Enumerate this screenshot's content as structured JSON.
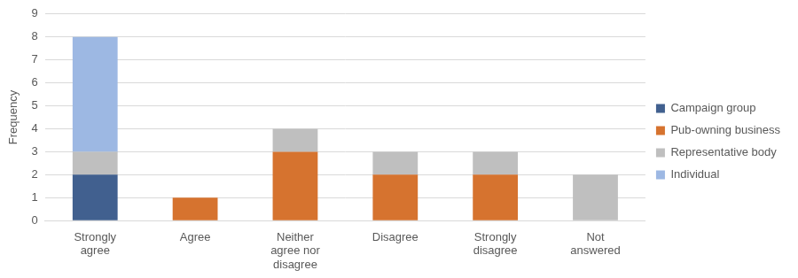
{
  "chart_data": {
    "type": "bar",
    "stacked": true,
    "grid": true,
    "legend": "right",
    "y_label": "Frequency",
    "categories": [
      "Strongly agree",
      "Agree",
      "Neither agree nor disagree",
      "Disagree",
      "Strongly disagree",
      "Not answered"
    ],
    "ylim": [
      0,
      9
    ],
    "yticks": [
      0,
      1,
      2,
      3,
      4,
      5,
      6,
      7,
      8,
      9
    ],
    "series": [
      {
        "name": "Campaign group",
        "color": "#41608f",
        "values": [
          2,
          0,
          0,
          0,
          0,
          0
        ]
      },
      {
        "name": "Pub-owning business",
        "color": "#d6732f",
        "values": [
          0,
          1,
          3,
          2,
          2,
          0
        ]
      },
      {
        "name": "Representative body",
        "color": "#bfbfbf",
        "values": [
          1,
          0,
          1,
          1,
          1,
          2
        ]
      },
      {
        "name": "Individual",
        "color": "#9db8e3",
        "values": [
          5,
          0,
          0,
          0,
          0,
          0
        ]
      }
    ]
  }
}
